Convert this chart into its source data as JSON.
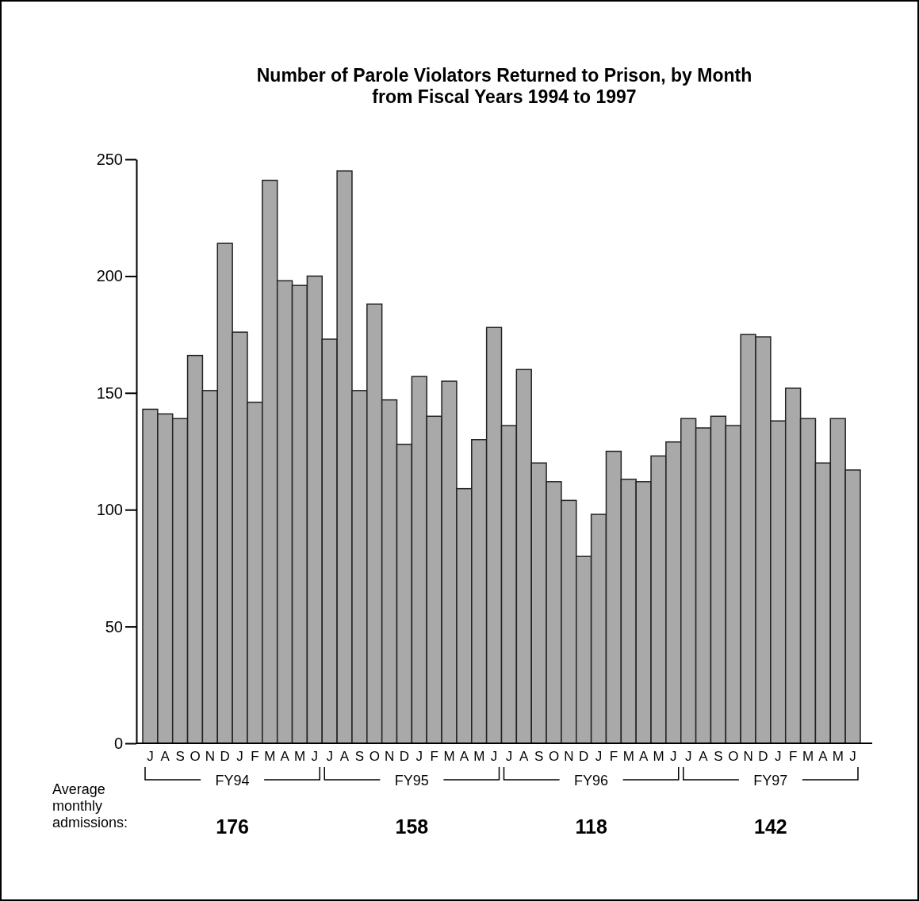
{
  "chart_data": {
    "type": "bar",
    "title": "Number of Parole Violators Returned to Prison, by Month from Fiscal Years 1994 to 1997",
    "categories": [
      "J",
      "A",
      "S",
      "O",
      "N",
      "D",
      "J",
      "F",
      "M",
      "A",
      "M",
      "J",
      "J",
      "A",
      "S",
      "O",
      "N",
      "D",
      "J",
      "F",
      "M",
      "A",
      "M",
      "J",
      "J",
      "A",
      "S",
      "O",
      "N",
      "D",
      "J",
      "F",
      "M",
      "A",
      "M",
      "J",
      "J",
      "A",
      "S",
      "O",
      "N",
      "D",
      "J",
      "F",
      "M",
      "A",
      "M",
      "J"
    ],
    "values": [
      143,
      141,
      139,
      166,
      151,
      214,
      176,
      146,
      241,
      198,
      196,
      200,
      173,
      245,
      151,
      188,
      147,
      128,
      157,
      140,
      155,
      109,
      130,
      178,
      136,
      160,
      120,
      112,
      104,
      80,
      98,
      125,
      113,
      112,
      123,
      129,
      139,
      135,
      140,
      136,
      175,
      174,
      138,
      152,
      139,
      120,
      139,
      117
    ],
    "color": "#a9a9a9",
    "ylim": [
      0,
      250
    ],
    "yticks": [
      0,
      50,
      100,
      150,
      200,
      250
    ],
    "grid": false,
    "annotations": [
      "Average monthly admissions:",
      "FY94",
      "176",
      "FY95",
      "158",
      "FY96",
      "118",
      "FY97",
      "142"
    ]
  }
}
